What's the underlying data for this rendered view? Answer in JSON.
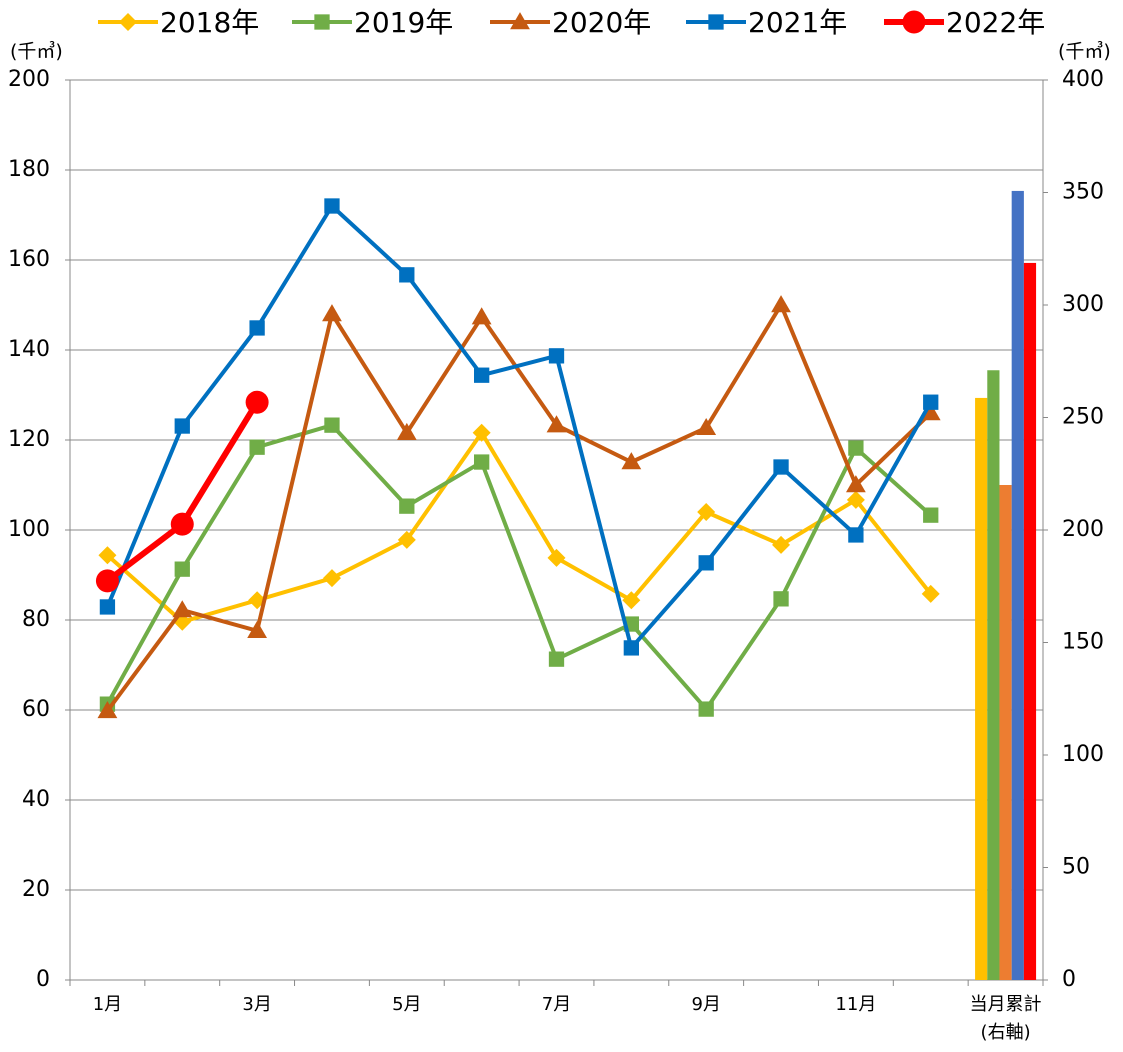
{
  "chart_data": {
    "type": "line",
    "y_unit": "(千㎥)",
    "y2_unit": "(千㎥)",
    "categories": [
      "1月",
      null,
      "3月",
      null,
      "5月",
      null,
      "7月",
      null,
      "9月",
      null,
      "11月",
      null,
      "当月累計"
    ],
    "category_note": "(右軸)",
    "series": [
      {
        "name": "2018年",
        "color": "#ffc000",
        "marker": "diamond",
        "values": [
          94.4,
          79.6,
          84.4,
          89.3,
          97.8,
          121.6,
          93.8,
          84.4,
          104,
          96.7,
          106.7,
          85.8,
          null
        ]
      },
      {
        "name": "2019年",
        "color": "#70ad47",
        "marker": "square",
        "values": [
          61.3,
          91.3,
          118.4,
          123.3,
          105.3,
          115.1,
          71.3,
          79.1,
          60.2,
          84.7,
          118.2,
          103.3,
          null
        ]
      },
      {
        "name": "2020年",
        "color": "#c55a11",
        "marker": "triangle",
        "values": [
          59.8,
          82.2,
          77.6,
          148,
          121.6,
          147.3,
          123.3,
          115.1,
          122.7,
          150,
          110,
          126,
          null
        ]
      },
      {
        "name": "2021年",
        "color": "#0070c0",
        "marker": "square",
        "values": [
          82.9,
          123.1,
          144.9,
          172,
          156.7,
          134.4,
          138.7,
          73.8,
          92.7,
          114,
          98.9,
          128.4,
          null
        ]
      },
      {
        "name": "2022年",
        "color": "#ff0000",
        "marker": "circle",
        "values": [
          88.7,
          101.3,
          128.4,
          null,
          null,
          null,
          null,
          null,
          null,
          null,
          null,
          null,
          null
        ]
      }
    ],
    "bar_series": [
      {
        "type": "bar",
        "axis": "y2",
        "color": "#ffc000",
        "values": [
          null,
          null,
          null,
          null,
          null,
          null,
          null,
          null,
          null,
          null,
          null,
          null,
          258.7
        ]
      },
      {
        "type": "bar",
        "axis": "y2",
        "color": "#70ad47",
        "values": [
          null,
          null,
          null,
          null,
          null,
          null,
          null,
          null,
          null,
          null,
          null,
          null,
          271
        ]
      },
      {
        "type": "bar",
        "axis": "y2",
        "color": "#ed7d31",
        "values": [
          null,
          null,
          null,
          null,
          null,
          null,
          null,
          null,
          null,
          null,
          null,
          null,
          220
        ]
      },
      {
        "type": "bar",
        "axis": "y2",
        "color": "#4472c4",
        "values": [
          null,
          null,
          null,
          null,
          null,
          null,
          null,
          null,
          null,
          null,
          null,
          null,
          350.7
        ]
      },
      {
        "type": "bar",
        "axis": "y2",
        "color": "#ff0000",
        "values": [
          null,
          null,
          null,
          null,
          null,
          null,
          null,
          null,
          null,
          null,
          null,
          null,
          318.7
        ]
      }
    ],
    "ylim": [
      0,
      200
    ],
    "yticks": [
      0,
      20,
      40,
      60,
      80,
      100,
      120,
      140,
      160,
      180,
      200
    ],
    "y2lim": [
      0,
      400
    ],
    "y2ticks": [
      0,
      50,
      100,
      150,
      200,
      250,
      300,
      350,
      400
    ],
    "grid": true,
    "legend": "top"
  }
}
